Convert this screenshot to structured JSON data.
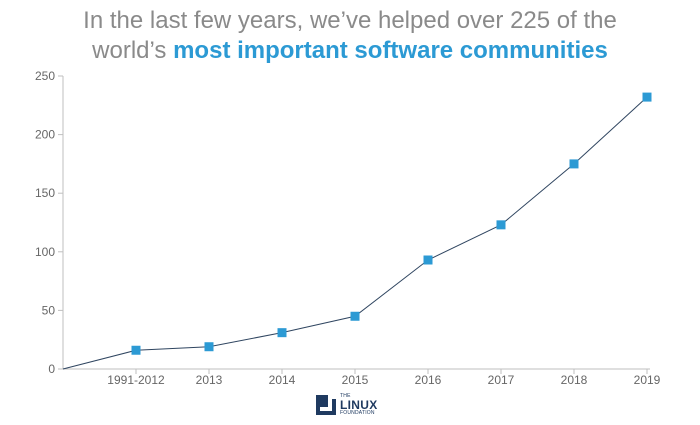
{
  "title": {
    "line1": "In the last few years, we’ve helped over 225 of the",
    "line2_prefix": "world’s ",
    "line2_highlight": "most important software communities"
  },
  "colors": {
    "title_gray": "#8a8a8a",
    "highlight": "#2c9ad4",
    "line": "#2f4560",
    "marker": "#2c9ad4",
    "logo": "#1f3a60"
  },
  "chart_data": {
    "type": "line",
    "categories": [
      "1991-2012",
      "2013",
      "2014",
      "2015",
      "2016",
      "2017",
      "2018",
      "2019"
    ],
    "values": [
      16,
      19,
      31,
      45,
      93,
      123,
      175,
      232
    ],
    "start_value": 0,
    "title": "",
    "xlabel": "",
    "ylabel": "",
    "ylim": [
      0,
      250
    ],
    "yticks": [
      0,
      50,
      100,
      150,
      200,
      250
    ],
    "grid": false,
    "legend": "none",
    "marker": "square"
  },
  "logo": {
    "small_top": "THE",
    "big": "LINUX",
    "small_bottom": "FOUNDATION",
    "icon": "linux-foundation-logo-icon"
  }
}
